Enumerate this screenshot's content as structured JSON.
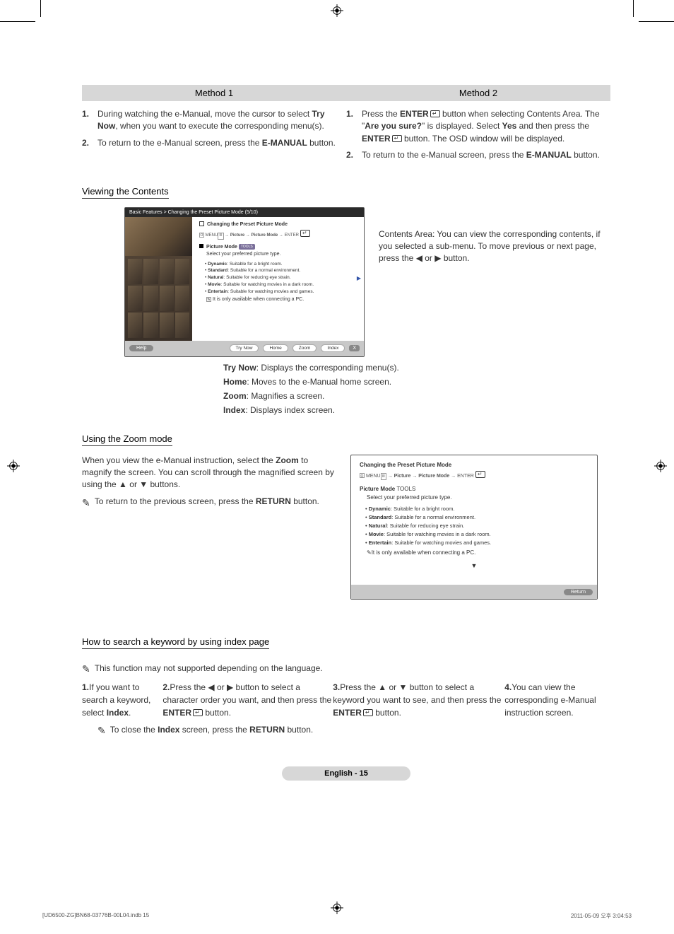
{
  "methods": {
    "col1": {
      "header": "Method 1",
      "items": [
        {
          "n": "1.",
          "t": "During watching the e-Manual, move the cursor to select <b>Try Now</b>, when you want to execute the corresponding menu(s)."
        },
        {
          "n": "2.",
          "t": "To return to the e-Manual screen, press the <b>E-MANUAL</b> button."
        }
      ]
    },
    "col2": {
      "header": "Method 2",
      "items": [
        {
          "n": "1.",
          "t": "Press the <b>ENTER</b><span class='enter-icon'></span> button when selecting Contents Area. The \"<b>Are you sure?</b>\" is displayed. Select <b>Yes</b> and then press the <b>ENTER</b><span class='enter-icon'></span> button. The OSD window will be displayed."
        },
        {
          "n": "2.",
          "t": "To return to the e-Manual screen, press the <b>E-MANUAL</b> button."
        }
      ]
    }
  },
  "sections": {
    "viewing": "Viewing the Contents",
    "zoom": "Using the Zoom mode",
    "index": "How to search a keyword by using index page"
  },
  "screenshot": {
    "breadcrumb": "Basic Features > Changing the Preset Picture Mode (5/10)",
    "title": "Changing the Preset Picture Mode",
    "nav": "MENU → Picture → Picture Mode → ENTER",
    "modeLabel": "Picture Mode",
    "tools": "TOOLS",
    "desc": "Select your preferred picture type.",
    "opts": [
      {
        "b": "Dynamic",
        "t": ": Suitable for a bright room."
      },
      {
        "b": "Standard",
        "t": ": Suitable for a normal environment."
      },
      {
        "b": "Natural",
        "t": ": Suitable for reducing eye strain."
      },
      {
        "b": "Movie",
        "t": ": Suitable for watching movies in a dark room."
      },
      {
        "b": "Entertain",
        "t": ": Suitable for watching movies and games."
      }
    ],
    "note": "It is only available when connecting a PC.",
    "buttons": {
      "help": "Help",
      "tryNow": "Try Now",
      "home": "Home",
      "zoom": "Zoom",
      "index": "Index",
      "x": "X"
    }
  },
  "viewingRight": "Contents Area: You can view the corresponding contents, if you selected a sub-menu. To move previous or next page, press the ◀ or ▶ button.",
  "captions": [
    "<b>Try Now</b>: Displays the corresponding menu(s).",
    "<b>Home</b>: Moves to the e-Manual home screen.",
    "<b>Zoom</b>: Magnifies a screen.",
    "<b>Index</b>: Displays index screen."
  ],
  "zoomLeft": {
    "p1": "When you view the e-Manual instruction, select the <b>Zoom</b> to magnify the screen. You can scroll through the magnified screen by using the <span class='tri'>▲</span> or <span class='tri'>▼</span> buttons.",
    "note": "To return to the previous screen, press the <b>RETURN</b> button."
  },
  "zoomBox": {
    "title": "Changing the Preset Picture Mode",
    "nav": "MENU → Picture → Picture Mode → ENTER",
    "modeLabel": "Picture Mode",
    "tools": "TOOLS",
    "desc": "Select your preferred picture type.",
    "opts": [
      {
        "b": "Dynamic",
        "t": ": Suitable for a bright room."
      },
      {
        "b": "Standard",
        "t": ": Suitable for a normal environment."
      },
      {
        "b": "Natural",
        "t": ": Suitable for reducing eye strain."
      },
      {
        "b": "Movie",
        "t": ": Suitable for watching movies in a dark room."
      },
      {
        "b": "Entertain",
        "t": ": Suitable for watching movies and games."
      }
    ],
    "note": "It is only available when connecting a PC.",
    "return": "Return"
  },
  "indexBody": {
    "note0": "This function may not supported depending on the language.",
    "items": [
      {
        "n": "1.",
        "t": "If you want to search a keyword, select <b>Index</b>."
      },
      {
        "n": "2.",
        "t": "Press the ◀ or ▶ button to select a character order you want, and then press the <b>ENTER</b><span class='enter-icon'></span> button."
      },
      {
        "n": "3.",
        "t": "Press the <span class='tri'>▲</span> or <span class='tri'>▼</span> button to select a keyword you want to see, and then press the <b>ENTER</b><span class='enter-icon'></span> button."
      },
      {
        "n": "4.",
        "t": "You can view the corresponding e-Manual instruction screen."
      }
    ],
    "note1": "To close the <b>Index</b> screen, press the <b>RETURN</b> button."
  },
  "footer": "English - 15",
  "print": {
    "left": "[UD6500-ZG]BN68-03776B-00L04.indb   15",
    "right": "2011-05-09   오후 3:04:53"
  }
}
